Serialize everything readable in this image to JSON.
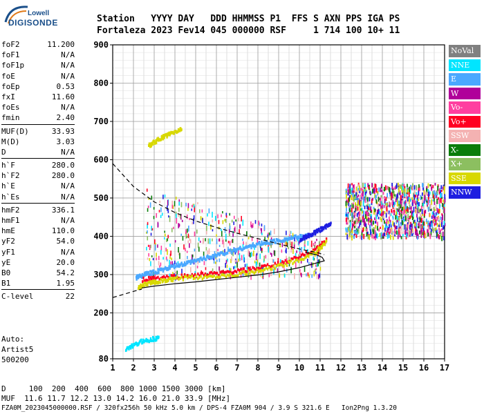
{
  "logo": {
    "line1": "Lowell",
    "line2": "DIGISONDE"
  },
  "header": {
    "row1": "Station   YYYY DAY   DDD HHMMSS P1  FFS S AXN PPS IGA PS",
    "row2": "Fortaleza 2023 Fev14 045 000000 RSF     1 714 100 10+ 11"
  },
  "params": {
    "group1": [
      {
        "name": "foF2",
        "value": "11.200"
      },
      {
        "name": "foF1",
        "value": "N/A"
      },
      {
        "name": "foF1p",
        "value": "N/A"
      },
      {
        "name": "foE",
        "value": "N/A"
      },
      {
        "name": "foEp",
        "value": "0.53"
      },
      {
        "name": "fxI",
        "value": "11.60"
      },
      {
        "name": "foEs",
        "value": "N/A"
      },
      {
        "name": "fmin",
        "value": "2.40"
      }
    ],
    "group2": [
      {
        "name": "MUF(D)",
        "value": "33.93"
      },
      {
        "name": "M(D)",
        "value": "3.03"
      },
      {
        "name": "D",
        "value": "N/A"
      }
    ],
    "group3": [
      {
        "name": "h`F",
        "value": "280.0"
      },
      {
        "name": "h`F2",
        "value": "280.0"
      },
      {
        "name": "h`E",
        "value": "N/A"
      },
      {
        "name": "h`Es",
        "value": "N/A"
      }
    ],
    "group4": [
      {
        "name": "hmF2",
        "value": "336.1"
      },
      {
        "name": "hmF1",
        "value": "N/A"
      },
      {
        "name": "hmE",
        "value": "110.0"
      },
      {
        "name": "yF2",
        "value": "54.0"
      },
      {
        "name": "yF1",
        "value": "N/A"
      },
      {
        "name": "yE",
        "value": "20.0"
      },
      {
        "name": "B0",
        "value": "54.2"
      },
      {
        "name": "B1",
        "value": "1.95"
      }
    ],
    "group5": [
      {
        "name": "C-level",
        "value": "22"
      }
    ]
  },
  "auto": {
    "line1": "Auto:",
    "line2": "Artist5",
    "line3": "500200"
  },
  "legend": [
    {
      "label": "NoVal",
      "color": "#808080"
    },
    {
      "label": "NNE",
      "color": "#00e5ff"
    },
    {
      "label": "E",
      "color": "#4aa8ff"
    },
    {
      "label": "W",
      "color": "#b0009a"
    },
    {
      "label": "Vo-",
      "color": "#ff3fa0"
    },
    {
      "label": "Vo+",
      "color": "#ff0022"
    },
    {
      "label": "SSW",
      "color": "#f4b2b2"
    },
    {
      "label": "X-",
      "color": "#0a7d0a"
    },
    {
      "label": "X+",
      "color": "#8cbf60"
    },
    {
      "label": "SSE",
      "color": "#d8d800"
    },
    {
      "label": "NNW",
      "color": "#1e1ee0"
    }
  ],
  "footer": {
    "line1": "D     100  200  400  600  800 1000 1500 3000 [km]",
    "line2": "MUF  11.6 11.7 12.2 13.0 14.2 16.0 21.0 33.9 [MHz]",
    "line3": "FZA0M_2023045000000.RSF / 320fx256h 50 kHz 5.0 km / DPS-4 FZA0M 904 / 3.9 S 321.6 E   Ion2Png 1.3.20"
  },
  "chart_data": {
    "type": "scatter",
    "xlim": [
      1,
      17
    ],
    "ylim": [
      80,
      900
    ],
    "xticks": [
      1,
      2,
      3,
      4,
      5,
      6,
      7,
      8,
      9,
      10,
      11,
      12,
      13,
      14,
      15,
      16,
      17
    ],
    "yticks": [
      80,
      200,
      300,
      400,
      500,
      600,
      700,
      800,
      900
    ],
    "grid": true,
    "traces": [
      {
        "name": "E",
        "color": "#4aa8ff",
        "points": [
          [
            2.1,
            295
          ],
          [
            2.3,
            300
          ],
          [
            2.6,
            305
          ],
          [
            3.0,
            310
          ],
          [
            3.5,
            318
          ],
          [
            4.0,
            326
          ],
          [
            4.5,
            332
          ],
          [
            5.0,
            340
          ],
          [
            5.5,
            348
          ],
          [
            6.0,
            355
          ],
          [
            6.5,
            362
          ],
          [
            7.0,
            370
          ],
          [
            7.5,
            376
          ],
          [
            8.0,
            383
          ],
          [
            8.5,
            388
          ],
          [
            9.0,
            393
          ],
          [
            9.5,
            398
          ],
          [
            10.0,
            402
          ],
          [
            10.4,
            406
          ]
        ]
      },
      {
        "name": "NNW",
        "color": "#1e1ee0",
        "points": [
          [
            10.0,
            395
          ],
          [
            10.3,
            402
          ],
          [
            10.6,
            410
          ],
          [
            10.9,
            418
          ],
          [
            11.2,
            428
          ],
          [
            11.5,
            435
          ]
        ]
      },
      {
        "name": "Vo+",
        "color": "#ff0022",
        "points": [
          [
            2.4,
            290
          ],
          [
            3.0,
            294
          ],
          [
            4.0,
            298
          ],
          [
            5.0,
            302
          ],
          [
            6.0,
            306
          ],
          [
            7.0,
            312
          ],
          [
            8.0,
            320
          ],
          [
            9.0,
            332
          ],
          [
            10.0,
            350
          ],
          [
            10.8,
            372
          ],
          [
            11.3,
            395
          ]
        ]
      },
      {
        "name": "SSE",
        "color": "#d8d800",
        "points": [
          [
            2.2,
            270
          ],
          [
            2.5,
            278
          ],
          [
            3.0,
            284
          ],
          [
            3.5,
            288
          ],
          [
            4.0,
            292
          ],
          [
            5.0,
            296
          ],
          [
            6.0,
            300
          ],
          [
            7.0,
            305
          ],
          [
            8.0,
            312
          ],
          [
            9.0,
            325
          ],
          [
            10.0,
            343
          ],
          [
            10.8,
            365
          ],
          [
            11.3,
            390
          ]
        ]
      },
      {
        "name": "SSE",
        "color": "#d8d800",
        "points": [
          [
            2.7,
            640
          ],
          [
            3.0,
            650
          ],
          [
            3.3,
            660
          ],
          [
            3.6,
            668
          ],
          [
            4.0,
            676
          ],
          [
            4.3,
            684
          ]
        ]
      },
      {
        "name": "NNE",
        "color": "#00e5ff",
        "points": [
          [
            1.6,
            110
          ],
          [
            2.0,
            118
          ],
          [
            2.4,
            130
          ],
          [
            2.9,
            135
          ],
          [
            3.2,
            138
          ]
        ]
      }
    ],
    "profile_solid": [
      [
        2.4,
        265
      ],
      [
        3,
        270
      ],
      [
        4,
        276
      ],
      [
        5,
        281
      ],
      [
        6,
        287
      ],
      [
        7,
        293
      ],
      [
        8,
        299
      ],
      [
        9,
        307
      ],
      [
        10,
        318
      ],
      [
        10.8,
        330
      ],
      [
        11.2,
        336
      ],
      [
        11.1,
        345
      ],
      [
        10.8,
        352
      ],
      [
        10.3,
        358
      ]
    ],
    "profile_dashed": [
      [
        1,
        590
      ],
      [
        1.5,
        560
      ],
      [
        2,
        530
      ],
      [
        2.5,
        510
      ],
      [
        3,
        490
      ],
      [
        4,
        462
      ],
      [
        5,
        440
      ],
      [
        6,
        423
      ],
      [
        7,
        408
      ],
      [
        8,
        394
      ],
      [
        9,
        380
      ],
      [
        10,
        367
      ],
      [
        10.8,
        358
      ],
      [
        11.2,
        352
      ]
    ],
    "profile_low": [
      [
        1,
        240
      ],
      [
        1.5,
        248
      ],
      [
        2,
        256
      ],
      [
        2.4,
        262
      ]
    ]
  }
}
